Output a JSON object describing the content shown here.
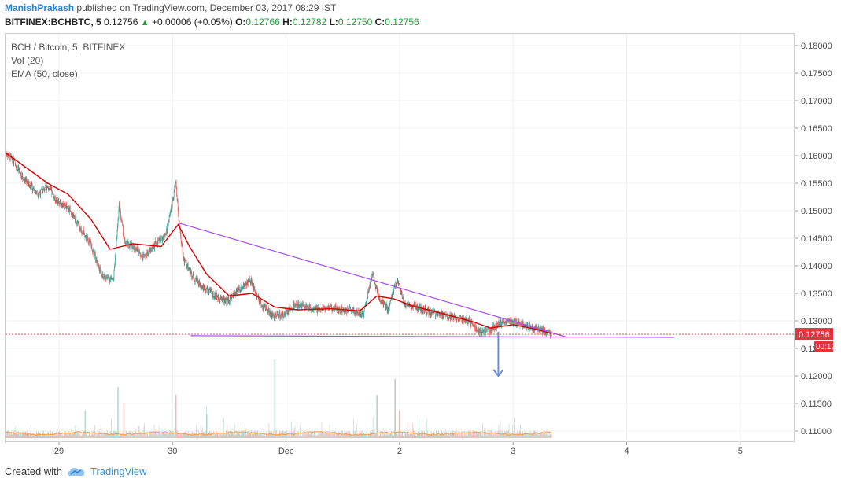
{
  "header": {
    "author": "ManishPrakash",
    "published": "published on TradingView.com, December 03, 2017 08:29 IST",
    "symbol": "BITFINEX:BCHBTC, 5",
    "price": "0.12756",
    "change_arrow": "▲",
    "change": "+0.00006 (+0.05%)",
    "o_label": "O:",
    "o_value": "0.12766",
    "h_label": "H:",
    "h_value": "0.12782",
    "l_label": "L:",
    "l_value": "0.12750",
    "c_label": "C:",
    "c_value": "0.12756"
  },
  "legend": {
    "title": "BCH / Bitcoin, 5, BITFINEX",
    "vol": "Vol (20)",
    "ema": "EMA (50, close)"
  },
  "footer": {
    "created_with": "Created with",
    "brand": "TradingView",
    "logo_icon": "tradingview-cloud-icon"
  },
  "colors": {
    "up": "#26a69a",
    "down": "#ef5350",
    "ema": "#d40000",
    "trendline": "#a64cf0",
    "arrow": "#6a8ed6",
    "price_label_bg": "#e5323c",
    "volume_ma": "#f39a3c"
  },
  "chart_data": {
    "type": "candlestick",
    "y_axis_ticks": [
      "0.18000",
      "0.17500",
      "0.17000",
      "0.16500",
      "0.16000",
      "0.15500",
      "0.15000",
      "0.14500",
      "0.14000",
      "0.13500",
      "0.13000",
      "0.12500",
      "0.12000",
      "0.11500",
      "0.11000"
    ],
    "ylim": [
      0.1075,
      0.1815
    ],
    "x_axis_ticks": [
      "29",
      "30",
      "Dec",
      "2",
      "3",
      "4",
      "5"
    ],
    "x_tick_days": [
      0,
      1,
      2,
      3,
      4,
      5,
      6
    ],
    "last_price_label": "0.12756",
    "countdown_label": "00:12",
    "obscured_tick_label": "0",
    "last_price": 0.12756,
    "price_path": [
      [
        -0.47,
        0.1605
      ],
      [
        -0.4,
        0.159
      ],
      [
        -0.32,
        0.156
      ],
      [
        -0.25,
        0.1545
      ],
      [
        -0.18,
        0.153
      ],
      [
        -0.1,
        0.1545
      ],
      [
        -0.03,
        0.152
      ],
      [
        0.08,
        0.1505
      ],
      [
        0.18,
        0.147
      ],
      [
        0.28,
        0.144
      ],
      [
        0.38,
        0.138
      ],
      [
        0.48,
        0.1375
      ],
      [
        0.53,
        0.151
      ],
      [
        0.58,
        0.144
      ],
      [
        0.66,
        0.1435
      ],
      [
        0.75,
        0.1415
      ],
      [
        0.85,
        0.144
      ],
      [
        0.94,
        0.1455
      ],
      [
        1.03,
        0.155
      ],
      [
        1.06,
        0.147
      ],
      [
        1.1,
        0.141
      ],
      [
        1.18,
        0.138
      ],
      [
        1.28,
        0.136
      ],
      [
        1.38,
        0.1345
      ],
      [
        1.48,
        0.1335
      ],
      [
        1.58,
        0.1355
      ],
      [
        1.68,
        0.1375
      ],
      [
        1.78,
        0.133
      ],
      [
        1.88,
        0.131
      ],
      [
        1.98,
        0.131
      ],
      [
        2.08,
        0.133
      ],
      [
        2.18,
        0.1325
      ],
      [
        2.28,
        0.132
      ],
      [
        2.38,
        0.1325
      ],
      [
        2.48,
        0.132
      ],
      [
        2.58,
        0.132
      ],
      [
        2.68,
        0.131
      ],
      [
        2.76,
        0.1385
      ],
      [
        2.82,
        0.134
      ],
      [
        2.9,
        0.132
      ],
      [
        2.98,
        0.1375
      ],
      [
        3.04,
        0.133
      ],
      [
        3.15,
        0.1325
      ],
      [
        3.28,
        0.1315
      ],
      [
        3.4,
        0.131
      ],
      [
        3.52,
        0.1305
      ],
      [
        3.62,
        0.13
      ],
      [
        3.7,
        0.128
      ],
      [
        3.8,
        0.1283
      ],
      [
        3.9,
        0.1298
      ],
      [
        4.0,
        0.1299
      ],
      [
        4.1,
        0.1292
      ],
      [
        4.2,
        0.1286
      ],
      [
        4.3,
        0.1279
      ],
      [
        4.34,
        0.12756
      ]
    ],
    "ema_path": [
      [
        -0.47,
        0.1605
      ],
      [
        -0.3,
        0.158
      ],
      [
        -0.1,
        0.155
      ],
      [
        0.08,
        0.153
      ],
      [
        0.28,
        0.1485
      ],
      [
        0.45,
        0.143
      ],
      [
        0.65,
        0.144
      ],
      [
        0.9,
        0.1435
      ],
      [
        1.05,
        0.1475
      ],
      [
        1.15,
        0.1435
      ],
      [
        1.3,
        0.1385
      ],
      [
        1.5,
        0.1345
      ],
      [
        1.7,
        0.135
      ],
      [
        1.9,
        0.1325
      ],
      [
        2.1,
        0.132
      ],
      [
        2.4,
        0.1322
      ],
      [
        2.65,
        0.1318
      ],
      [
        2.8,
        0.1345
      ],
      [
        2.95,
        0.134
      ],
      [
        3.1,
        0.1328
      ],
      [
        3.4,
        0.1312
      ],
      [
        3.65,
        0.1298
      ],
      [
        3.8,
        0.1287
      ],
      [
        4.0,
        0.1293
      ],
      [
        4.2,
        0.1285
      ],
      [
        4.34,
        0.1277
      ]
    ],
    "trendlines": [
      {
        "name": "descending",
        "points": [
          [
            1.05,
            0.1478
          ],
          [
            4.48,
            0.127
          ]
        ]
      },
      {
        "name": "support",
        "points": [
          [
            1.16,
            0.1273
          ],
          [
            5.42,
            0.127
          ]
        ]
      }
    ],
    "projection_arrow": {
      "from": [
        3.87,
        0.128
      ],
      "to": [
        3.87,
        0.12
      ]
    },
    "volume_spikes": [
      {
        "x": 0.52,
        "v": 0.65
      },
      {
        "x": 0.57,
        "v": 0.45
      },
      {
        "x": 1.03,
        "v": 0.55
      },
      {
        "x": 1.9,
        "v": 1.0
      },
      {
        "x": 2.8,
        "v": 0.55
      },
      {
        "x": 2.96,
        "v": 0.75
      },
      {
        "x": 3.0,
        "v": 0.35
      },
      {
        "x": 0.23,
        "v": 0.35
      },
      {
        "x": 1.3,
        "v": 0.3
      }
    ]
  }
}
